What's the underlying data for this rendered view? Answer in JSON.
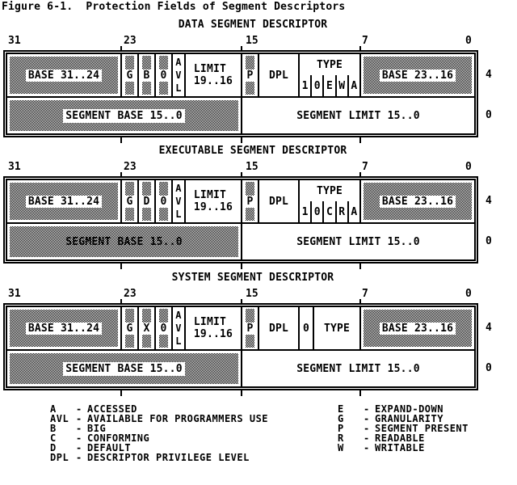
{
  "figure_title": "Figure 6-1.  Protection Fields of Segment Descriptors",
  "colors": {
    "ink": "#000000",
    "paper": "#ffffff"
  },
  "bit_scale_labels": [
    "31",
    "23",
    "15",
    "7",
    "0"
  ],
  "descriptors": [
    {
      "id": "data",
      "title": "DATA SEGMENT DESCRIPTOR",
      "dword4": {
        "offset_label": "4",
        "cells": [
          {
            "label": "BASE 31..24",
            "kind": "baseh",
            "hatch": true,
            "chip": true
          },
          {
            "label": "G",
            "kind": "flag",
            "hatch": true,
            "chip": true
          },
          {
            "label": "B",
            "kind": "flag",
            "hatch": true,
            "chip": true
          },
          {
            "label": "0",
            "kind": "flag",
            "hatch": true,
            "chip": true
          },
          {
            "label": "AVL",
            "kind": "avl"
          },
          {
            "label": "LIMIT",
            "label2": "19..16",
            "kind": "limit"
          },
          {
            "label": "P",
            "kind": "p",
            "hatch": true,
            "chip": true
          },
          {
            "label": "DPL",
            "kind": "dpl"
          },
          {
            "label": "TYPE",
            "kind": "type",
            "type_bits": [
              "1",
              "0",
              "E",
              "W",
              "A"
            ]
          },
          {
            "label": "BASE 23..16",
            "kind": "basem",
            "hatch": true,
            "chip": true
          }
        ]
      },
      "dword0": {
        "offset_label": "0",
        "left_label": "SEGMENT BASE 15..0",
        "left_chip": true,
        "right_label": "SEGMENT LIMIT 15..0"
      }
    },
    {
      "id": "executable",
      "title": "EXECUTABLE SEGMENT DESCRIPTOR",
      "dword4": {
        "offset_label": "4",
        "cells": [
          {
            "label": "BASE 31..24",
            "kind": "baseh",
            "hatch": true,
            "chip": true
          },
          {
            "label": "G",
            "kind": "flag",
            "hatch": true,
            "chip": true
          },
          {
            "label": "D",
            "kind": "flag",
            "hatch": true,
            "chip": true
          },
          {
            "label": "0",
            "kind": "flag",
            "hatch": true,
            "chip": true
          },
          {
            "label": "AVL",
            "kind": "avl"
          },
          {
            "label": "LIMIT",
            "label2": "19..16",
            "kind": "limit"
          },
          {
            "label": "P",
            "kind": "p",
            "hatch": true,
            "chip": true
          },
          {
            "label": "DPL",
            "kind": "dpl"
          },
          {
            "label": "TYPE",
            "kind": "type",
            "type_bits": [
              "1",
              "0",
              "C",
              "R",
              "A"
            ]
          },
          {
            "label": "BASE 23..16",
            "kind": "basem",
            "hatch": true,
            "chip": true
          }
        ]
      },
      "dword0": {
        "offset_label": "0",
        "left_label": "SEGMENT BASE 15..0",
        "left_chip": false,
        "right_label": "SEGMENT LIMIT 15..0"
      }
    },
    {
      "id": "system",
      "title": "SYSTEM SEGMENT DESCRIPTOR",
      "dword4": {
        "offset_label": "4",
        "cells": [
          {
            "label": "BASE 31..24",
            "kind": "baseh",
            "hatch": true,
            "chip": true
          },
          {
            "label": "G",
            "kind": "flag",
            "hatch": true,
            "chip": true
          },
          {
            "label": "X",
            "kind": "flag",
            "hatch": true,
            "chip": true
          },
          {
            "label": "0",
            "kind": "flag",
            "hatch": true,
            "chip": true
          },
          {
            "label": "AVL",
            "kind": "avl"
          },
          {
            "label": "LIMIT",
            "label2": "19..16",
            "kind": "limit"
          },
          {
            "label": "P",
            "kind": "p",
            "hatch": true,
            "chip": true
          },
          {
            "label": "DPL",
            "kind": "dpl"
          },
          {
            "label": "0",
            "kind": "zero"
          },
          {
            "label": "TYPE",
            "kind": "typesys"
          },
          {
            "label": "BASE 23..16",
            "kind": "basem",
            "hatch": true,
            "chip": true
          }
        ]
      },
      "dword0": {
        "offset_label": "0",
        "left_label": "SEGMENT BASE 15..0",
        "left_chip": true,
        "right_label": "SEGMENT LIMIT 15..0"
      }
    }
  ],
  "legend": {
    "separator": "-",
    "left": [
      {
        "code": "A",
        "desc": "ACCESSED"
      },
      {
        "code": "AVL",
        "desc": "AVAILABLE FOR PROGRAMMERS USE"
      },
      {
        "code": "B",
        "desc": "BIG"
      },
      {
        "code": "C",
        "desc": "CONFORMING"
      },
      {
        "code": "D",
        "desc": "DEFAULT"
      },
      {
        "code": "DPL",
        "desc": "DESCRIPTOR PRIVILEGE LEVEL"
      }
    ],
    "right": [
      {
        "code": "E",
        "desc": "EXPAND-DOWN"
      },
      {
        "code": "G",
        "desc": "GRANULARITY"
      },
      {
        "code": "P",
        "desc": "SEGMENT PRESENT"
      },
      {
        "code": "R",
        "desc": "READABLE"
      },
      {
        "code": "W",
        "desc": "WRITABLE"
      }
    ]
  }
}
